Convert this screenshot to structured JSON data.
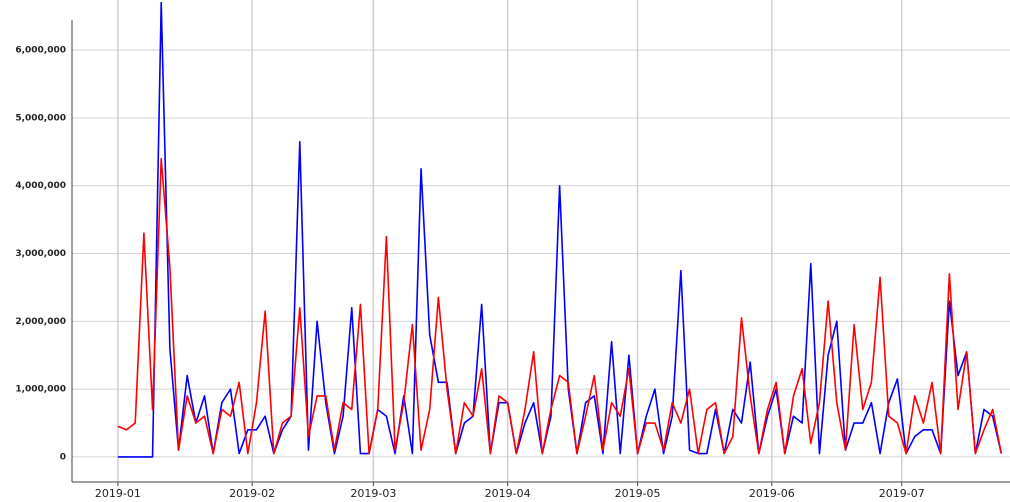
{
  "chart_data": {
    "type": "line",
    "x": [
      0,
      2,
      4,
      6,
      8,
      10,
      12,
      14,
      16,
      18,
      20,
      22,
      24,
      26,
      28,
      30,
      32,
      34,
      36,
      38,
      40,
      42,
      44,
      46,
      48,
      50,
      52,
      54,
      56,
      58,
      60,
      62,
      64,
      66,
      68,
      70,
      72,
      74,
      76,
      78,
      80,
      82,
      84,
      86,
      88,
      90,
      92,
      94,
      96,
      98,
      100,
      102,
      104,
      106,
      108,
      110,
      112,
      114,
      116,
      118,
      120,
      122,
      124,
      126,
      128,
      130,
      132,
      134,
      136,
      138,
      140,
      142,
      144,
      146,
      148,
      150,
      152,
      154,
      156,
      158,
      160,
      162,
      164,
      166,
      168,
      170,
      172,
      174,
      176,
      178,
      180,
      182,
      184,
      186,
      188,
      190,
      192,
      194,
      196,
      198,
      200,
      202,
      204
    ],
    "series": [
      {
        "color": "#0000ff",
        "values": [
          0,
          0,
          0,
          0,
          0,
          6700000,
          1600000,
          100000,
          1200000,
          500000,
          900000,
          50000,
          800000,
          1000000,
          50000,
          400000,
          400000,
          600000,
          50000,
          400000,
          600000,
          4650000,
          100000,
          2000000,
          800000,
          50000,
          600000,
          2200000,
          50000,
          50000,
          700000,
          600000,
          50000,
          900000,
          50000,
          4250000,
          1800000,
          1100000,
          1100000,
          50000,
          500000,
          600000,
          2250000,
          50000,
          800000,
          800000,
          50000,
          500000,
          800000,
          50000,
          600000,
          4000000,
          1000000,
          50000,
          800000,
          900000,
          50000,
          1700000,
          50000,
          1500000,
          50000,
          600000,
          1000000,
          50000,
          600000,
          2750000,
          100000,
          50000,
          50000,
          700000,
          50000,
          700000,
          500000,
          1400000,
          50000,
          600000,
          1000000,
          50000,
          600000,
          500000,
          2850000,
          50000,
          1500000,
          2000000,
          100000,
          500000,
          500000,
          800000,
          50000,
          800000,
          1150000,
          50000,
          300000,
          400000,
          400000,
          50000,
          2300000,
          1200000,
          1550000,
          50000,
          700000,
          600000,
          50000
        ]
      },
      {
        "color": "#ff0000",
        "values": [
          450000,
          400000,
          500000,
          3300000,
          700000,
          4400000,
          2800000,
          100000,
          900000,
          500000,
          600000,
          50000,
          700000,
          600000,
          1100000,
          50000,
          800000,
          2150000,
          50000,
          500000,
          600000,
          2200000,
          300000,
          900000,
          900000,
          100000,
          800000,
          700000,
          2250000,
          50000,
          700000,
          3250000,
          100000,
          800000,
          1950000,
          100000,
          700000,
          2350000,
          1000000,
          50000,
          800000,
          600000,
          1300000,
          50000,
          900000,
          800000,
          50000,
          700000,
          1550000,
          50000,
          700000,
          1200000,
          1100000,
          50000,
          600000,
          1200000,
          100000,
          800000,
          600000,
          1300000,
          50000,
          500000,
          500000,
          100000,
          800000,
          500000,
          1000000,
          50000,
          700000,
          800000,
          50000,
          300000,
          2050000,
          900000,
          50000,
          700000,
          1100000,
          50000,
          900000,
          1300000,
          200000,
          800000,
          2300000,
          800000,
          100000,
          1950000,
          700000,
          1100000,
          2650000,
          600000,
          500000,
          50000,
          900000,
          500000,
          1100000,
          50000,
          2700000,
          700000,
          1550000,
          50000,
          400000,
          700000,
          50000
        ]
      }
    ],
    "xlim": [
      -10.6,
      206
    ],
    "xticks": [
      {
        "value": 0,
        "label": "2019-01"
      },
      {
        "value": 31,
        "label": "2019-02"
      },
      {
        "value": 59,
        "label": "2019-03"
      },
      {
        "value": 90,
        "label": "2019-04"
      },
      {
        "value": 120,
        "label": "2019-05"
      },
      {
        "value": 151,
        "label": "2019-06"
      },
      {
        "value": 181,
        "label": "2019-07"
      }
    ],
    "ylim": [
      -370000,
      6740000
    ],
    "yticks": [
      0,
      {
        "value": 1000000,
        "label": "1,000,000"
      },
      {
        "value": 2000000,
        "label": "2,000,000"
      },
      {
        "value": 3000000,
        "label": "3,000,000"
      },
      {
        "value": 4000000,
        "label": "4,000,000"
      },
      {
        "value": 5000000,
        "label": "5,000,000"
      },
      {
        "value": 6000000,
        "label": "6,000,000"
      }
    ],
    "grid": true
  }
}
